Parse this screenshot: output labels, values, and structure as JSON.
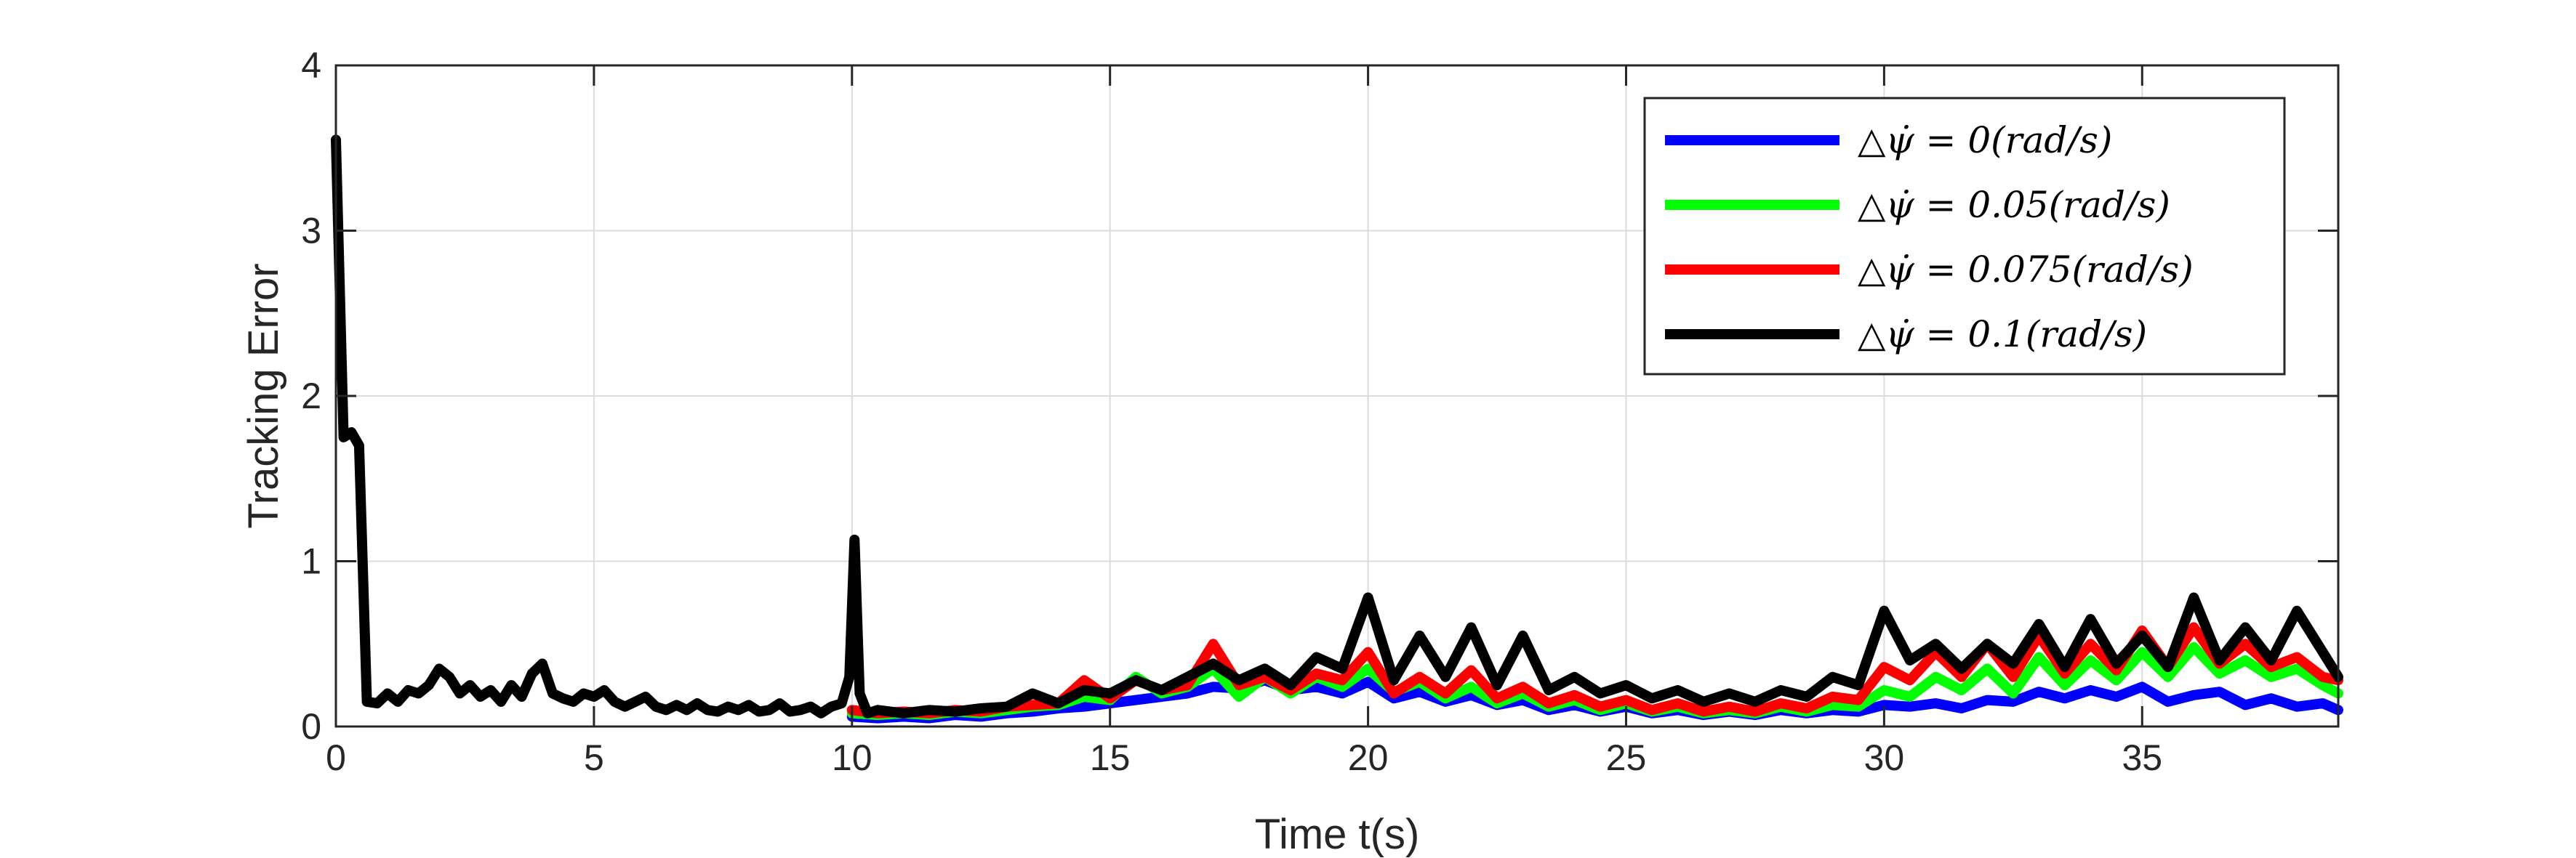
{
  "chart_data": {
    "type": "line",
    "title": "",
    "xlabel": "Time t(s)",
    "ylabel": "Tracking Error",
    "xlim": [
      0,
      38.8
    ],
    "ylim": [
      0,
      4
    ],
    "xticks": [
      0,
      5,
      10,
      15,
      20,
      25,
      30,
      35
    ],
    "yticks": [
      0,
      1,
      2,
      3,
      4
    ],
    "grid": true,
    "legend_position": "top-right",
    "series": [
      {
        "name": "△ψ̇ = 0(rad/s)",
        "color": "#0000ff",
        "x": [
          10,
          10.5,
          11,
          11.5,
          12,
          12.5,
          13,
          13.5,
          14,
          14.5,
          15,
          15.5,
          16,
          16.5,
          17,
          17.5,
          18,
          18.5,
          19,
          19.5,
          20,
          20.5,
          21,
          21.5,
          22,
          22.5,
          23,
          23.5,
          24,
          24.5,
          25,
          25.5,
          26,
          26.5,
          27,
          27.5,
          28,
          28.5,
          29,
          29.5,
          30,
          30.5,
          31,
          31.5,
          32,
          32.5,
          33,
          33.5,
          34,
          34.5,
          35,
          35.5,
          36,
          36.5,
          37,
          37.5,
          38,
          38.5,
          38.8
        ],
        "y": [
          0.06,
          0.05,
          0.06,
          0.05,
          0.07,
          0.06,
          0.08,
          0.09,
          0.11,
          0.12,
          0.14,
          0.16,
          0.18,
          0.2,
          0.24,
          0.23,
          0.28,
          0.22,
          0.24,
          0.2,
          0.27,
          0.17,
          0.21,
          0.15,
          0.19,
          0.13,
          0.16,
          0.1,
          0.13,
          0.09,
          0.12,
          0.08,
          0.1,
          0.07,
          0.09,
          0.07,
          0.1,
          0.08,
          0.1,
          0.09,
          0.13,
          0.12,
          0.14,
          0.11,
          0.16,
          0.15,
          0.21,
          0.17,
          0.22,
          0.18,
          0.24,
          0.15,
          0.19,
          0.21,
          0.13,
          0.17,
          0.12,
          0.14,
          0.1
        ]
      },
      {
        "name": "△ψ̇ = 0.05(rad/s)",
        "color": "#00ff00",
        "x": [
          10,
          10.5,
          11,
          11.5,
          12,
          12.5,
          13,
          13.5,
          14,
          14.5,
          15,
          15.5,
          16,
          16.5,
          17,
          17.5,
          18,
          18.5,
          19,
          19.5,
          20,
          20.5,
          21,
          21.5,
          22,
          22.5,
          23,
          23.5,
          24,
          24.5,
          25,
          25.5,
          26,
          26.5,
          27,
          27.5,
          28,
          28.5,
          29,
          29.5,
          30,
          30.5,
          31,
          31.5,
          32,
          32.5,
          33,
          33.5,
          34,
          34.5,
          35,
          35.5,
          36,
          36.5,
          37,
          37.5,
          38,
          38.5,
          38.8
        ],
        "y": [
          0.08,
          0.07,
          0.08,
          0.07,
          0.09,
          0.08,
          0.1,
          0.12,
          0.13,
          0.18,
          0.16,
          0.3,
          0.2,
          0.24,
          0.35,
          0.18,
          0.3,
          0.2,
          0.3,
          0.24,
          0.35,
          0.21,
          0.27,
          0.17,
          0.24,
          0.14,
          0.2,
          0.12,
          0.16,
          0.1,
          0.14,
          0.09,
          0.12,
          0.08,
          0.1,
          0.08,
          0.12,
          0.09,
          0.13,
          0.12,
          0.22,
          0.18,
          0.3,
          0.22,
          0.35,
          0.2,
          0.42,
          0.25,
          0.4,
          0.28,
          0.45,
          0.3,
          0.48,
          0.32,
          0.4,
          0.3,
          0.35,
          0.25,
          0.2
        ]
      },
      {
        "name": "△ψ̇ = 0.075(rad/s)",
        "color": "#ff0000",
        "x": [
          10,
          10.5,
          11,
          11.5,
          12,
          12.5,
          13,
          13.5,
          14,
          14.5,
          15,
          15.5,
          16,
          16.5,
          17,
          17.5,
          18,
          18.5,
          19,
          19.5,
          20,
          20.5,
          21,
          21.5,
          22,
          22.5,
          23,
          23.5,
          24,
          24.5,
          25,
          25.5,
          26,
          26.5,
          27,
          27.5,
          28,
          28.5,
          29,
          29.5,
          30,
          30.5,
          31,
          31.5,
          32,
          32.5,
          33,
          33.5,
          34,
          34.5,
          35,
          35.5,
          36,
          36.5,
          37,
          37.5,
          38,
          38.5,
          38.8
        ],
        "y": [
          0.1,
          0.08,
          0.09,
          0.08,
          0.1,
          0.09,
          0.12,
          0.13,
          0.14,
          0.28,
          0.17,
          0.28,
          0.22,
          0.25,
          0.5,
          0.25,
          0.3,
          0.22,
          0.32,
          0.28,
          0.45,
          0.2,
          0.3,
          0.2,
          0.34,
          0.17,
          0.24,
          0.14,
          0.19,
          0.12,
          0.16,
          0.1,
          0.14,
          0.09,
          0.12,
          0.09,
          0.14,
          0.11,
          0.18,
          0.16,
          0.36,
          0.28,
          0.45,
          0.3,
          0.5,
          0.3,
          0.55,
          0.32,
          0.5,
          0.34,
          0.58,
          0.36,
          0.6,
          0.38,
          0.5,
          0.36,
          0.42,
          0.3,
          0.28
        ]
      },
      {
        "name": "△ψ̇ = 0.1(rad/s)",
        "color": "#000000",
        "x": [
          0,
          0.15,
          0.3,
          0.45,
          0.6,
          0.8,
          1,
          1.2,
          1.4,
          1.6,
          1.8,
          2,
          2.2,
          2.4,
          2.6,
          2.8,
          3,
          3.2,
          3.4,
          3.6,
          3.8,
          4,
          4.2,
          4.4,
          4.6,
          4.8,
          5,
          5.2,
          5.4,
          5.6,
          5.8,
          6,
          6.2,
          6.4,
          6.6,
          6.8,
          7,
          7.2,
          7.4,
          7.6,
          7.8,
          8,
          8.2,
          8.4,
          8.6,
          8.8,
          9,
          9.2,
          9.4,
          9.6,
          9.8,
          9.95,
          10.05,
          10.15,
          10.3,
          10.5,
          11,
          11.5,
          12,
          12.5,
          13,
          13.5,
          14,
          14.5,
          15,
          15.5,
          16,
          16.5,
          17,
          17.5,
          18,
          18.5,
          19,
          19.5,
          20,
          20.5,
          21,
          21.5,
          22,
          22.5,
          23,
          23.5,
          24,
          24.5,
          25,
          25.5,
          26,
          26.5,
          27,
          27.5,
          28,
          28.5,
          29,
          29.5,
          30,
          30.5,
          31,
          31.5,
          32,
          32.5,
          33,
          33.5,
          34,
          34.5,
          35,
          35.5,
          36,
          36.5,
          37,
          37.5,
          38,
          38.5,
          38.8
        ],
        "y": [
          3.55,
          1.75,
          1.78,
          1.7,
          0.15,
          0.14,
          0.2,
          0.15,
          0.22,
          0.2,
          0.25,
          0.35,
          0.3,
          0.2,
          0.25,
          0.18,
          0.22,
          0.15,
          0.25,
          0.18,
          0.32,
          0.38,
          0.2,
          0.17,
          0.15,
          0.2,
          0.18,
          0.22,
          0.15,
          0.12,
          0.15,
          0.18,
          0.12,
          0.1,
          0.13,
          0.1,
          0.14,
          0.1,
          0.09,
          0.12,
          0.1,
          0.13,
          0.09,
          0.1,
          0.14,
          0.09,
          0.1,
          0.12,
          0.08,
          0.12,
          0.14,
          0.3,
          1.13,
          0.2,
          0.08,
          0.1,
          0.08,
          0.1,
          0.09,
          0.11,
          0.12,
          0.2,
          0.14,
          0.22,
          0.2,
          0.28,
          0.22,
          0.3,
          0.38,
          0.28,
          0.35,
          0.25,
          0.42,
          0.35,
          0.78,
          0.28,
          0.55,
          0.3,
          0.6,
          0.25,
          0.55,
          0.22,
          0.3,
          0.2,
          0.25,
          0.17,
          0.22,
          0.15,
          0.2,
          0.15,
          0.22,
          0.18,
          0.3,
          0.25,
          0.7,
          0.4,
          0.5,
          0.35,
          0.5,
          0.38,
          0.62,
          0.36,
          0.65,
          0.38,
          0.55,
          0.36,
          0.78,
          0.4,
          0.6,
          0.4,
          0.7,
          0.45,
          0.3
        ]
      }
    ]
  }
}
